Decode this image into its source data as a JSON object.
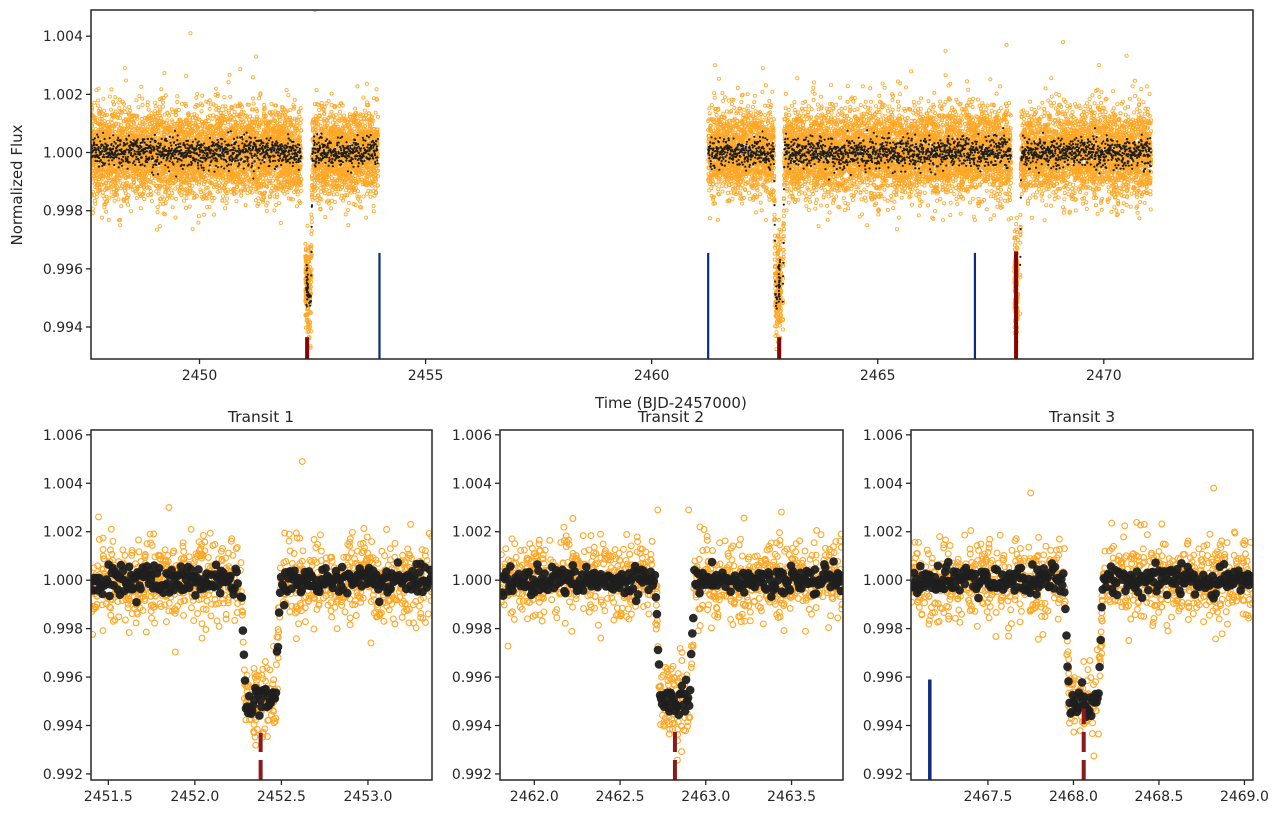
{
  "colors": {
    "raw_points": "#ffa726",
    "binned_points": "#1f1f1f",
    "detected_transit_marker": "#8b0000",
    "panel_transit_marker": "#8b1a1a",
    "predicted_marker": "#0d2a7d",
    "frame": "#262626"
  },
  "chart_data": [
    {
      "type": "scatter",
      "panel": "full-light-curve",
      "xlabel": "Time (BJD-2457000)",
      "ylabel": "Normalized Flux",
      "xlim": [
        2447.6,
        2473.3
      ],
      "ylim": [
        0.9929,
        1.0049
      ],
      "xticks": [
        2450,
        2455,
        2460,
        2465,
        2470
      ],
      "xtick_labels": [
        "2450",
        "2455",
        "2460",
        "2465",
        "2470"
      ],
      "yticks": [
        0.994,
        0.996,
        0.998,
        1.0,
        1.002,
        1.004
      ],
      "ytick_labels": [
        "0.994",
        "0.996",
        "0.998",
        "1.000",
        "1.002",
        "1.004"
      ],
      "grid": false,
      "segments": [
        [
          2447.6,
          2452.25
        ],
        [
          2452.42,
          2453.95
        ],
        [
          2461.25,
          2462.78
        ],
        [
          2462.9,
          2467.95
        ],
        [
          2468.15,
          2471.05
        ]
      ],
      "scatter_sigma": 0.0009,
      "baseline": 1.0,
      "transits": [
        {
          "t0": 2452.38,
          "depth": 0.005,
          "duration": 0.23
        },
        {
          "t0": 2462.82,
          "depth": 0.005,
          "duration": 0.23
        },
        {
          "t0": 2468.06,
          "depth": 0.005,
          "duration": 0.23
        }
      ],
      "detected_markers": [
        {
          "x": 2452.38,
          "y_range": [
            0.9929,
            0.99365
          ]
        },
        {
          "x": 2462.82,
          "y_range": [
            0.9929,
            0.99365
          ]
        },
        {
          "x": 2468.06,
          "y_range": [
            0.9929,
            0.9966
          ]
        }
      ],
      "predicted_markers": [
        {
          "x": 2453.98,
          "y_range": [
            0.9929,
            0.99655
          ]
        },
        {
          "x": 2461.25,
          "y_range": [
            0.9929,
            0.99655
          ]
        },
        {
          "x": 2467.15,
          "y_range": [
            0.9929,
            0.99655
          ]
        }
      ],
      "outliers": [
        {
          "x": 2449.8,
          "y": 1.0041
        },
        {
          "x": 2452.55,
          "y": 1.0049
        },
        {
          "x": 2451.25,
          "y": 1.0033
        },
        {
          "x": 2466.5,
          "y": 1.0035
        },
        {
          "x": 2467.85,
          "y": 1.0037
        },
        {
          "x": 2469.1,
          "y": 1.0038
        },
        {
          "x": 2448.35,
          "y": 1.0029
        },
        {
          "x": 2461.4,
          "y": 1.003
        }
      ]
    },
    {
      "type": "scatter",
      "panel": "transit-1",
      "title": "Transit 1",
      "xlim": [
        2451.4,
        2453.37
      ],
      "ylim": [
        0.99175,
        1.0062
      ],
      "xticks": [
        2451.5,
        2452.0,
        2452.5,
        2453.0
      ],
      "xtick_labels": [
        "2451.5",
        "2452.0",
        "2452.5",
        "2453.0"
      ],
      "yticks": [
        0.992,
        0.994,
        0.996,
        0.998,
        1.0,
        1.002,
        1.004,
        1.006
      ],
      "ytick_labels": [
        "0.992",
        "0.994",
        "0.996",
        "0.998",
        "1.000",
        "1.002",
        "1.004",
        "1.006"
      ],
      "transit": {
        "t0": 2452.38,
        "depth": 0.005,
        "duration": 0.23
      },
      "gaps": [
        [
          2452.25,
          2452.42
        ]
      ],
      "transit_marker": {
        "x": 2452.38,
        "y_range": [
          0.99175,
          0.9937
        ]
      },
      "predicted_marker": null,
      "outliers": [
        {
          "x": 2452.62,
          "y": 1.0049
        },
        {
          "x": 2451.85,
          "y": 1.003
        }
      ]
    },
    {
      "type": "scatter",
      "panel": "transit-2",
      "title": "Transit 2",
      "xlim": [
        2461.8,
        2463.8
      ],
      "ylim": [
        0.99175,
        1.0062
      ],
      "xticks": [
        2462.0,
        2462.5,
        2463.0,
        2463.5
      ],
      "xtick_labels": [
        "2462.0",
        "2462.5",
        "2463.0",
        "2463.5"
      ],
      "yticks": [
        0.992,
        0.994,
        0.996,
        0.998,
        1.0,
        1.002,
        1.004,
        1.006
      ],
      "ytick_labels": [
        "0.992",
        "0.994",
        "0.996",
        "0.998",
        "1.000",
        "1.002",
        "1.004",
        "1.006"
      ],
      "transit": {
        "t0": 2462.82,
        "depth": 0.005,
        "duration": 0.23
      },
      "gaps": [
        [
          2462.78,
          2462.9
        ]
      ],
      "transit_marker": {
        "x": 2462.82,
        "y_range": [
          0.99175,
          0.9938
        ]
      },
      "predicted_marker": null,
      "outliers": [
        {
          "x": 2462.72,
          "y": 1.0029
        },
        {
          "x": 2462.9,
          "y": 1.0029
        }
      ]
    },
    {
      "type": "scatter",
      "panel": "transit-3",
      "title": "Transit 3",
      "xlim": [
        2467.05,
        2469.05
      ],
      "ylim": [
        0.99175,
        1.0062
      ],
      "xticks": [
        2467.5,
        2468.0,
        2468.5,
        2469.0
      ],
      "xtick_labels": [
        "2467.5",
        "2468.0",
        "2468.5",
        "2469.0"
      ],
      "yticks": [
        0.992,
        0.994,
        0.996,
        0.998,
        1.0,
        1.002,
        1.004,
        1.006
      ],
      "ytick_labels": [
        "0.992",
        "0.994",
        "0.996",
        "0.998",
        "1.000",
        "1.002",
        "1.004",
        "1.006"
      ],
      "transit": {
        "t0": 2468.06,
        "depth": 0.005,
        "duration": 0.23
      },
      "gaps": [
        [
          2467.95,
          2468.15
        ]
      ],
      "transit_marker": {
        "x": 2468.06,
        "y_range": [
          0.99175,
          0.9947
        ]
      },
      "predicted_marker": {
        "x": 2467.16,
        "y_range": [
          0.99175,
          0.9959
        ]
      },
      "outliers": [
        {
          "x": 2467.75,
          "y": 1.0036
        },
        {
          "x": 2468.82,
          "y": 1.0038
        }
      ]
    }
  ]
}
